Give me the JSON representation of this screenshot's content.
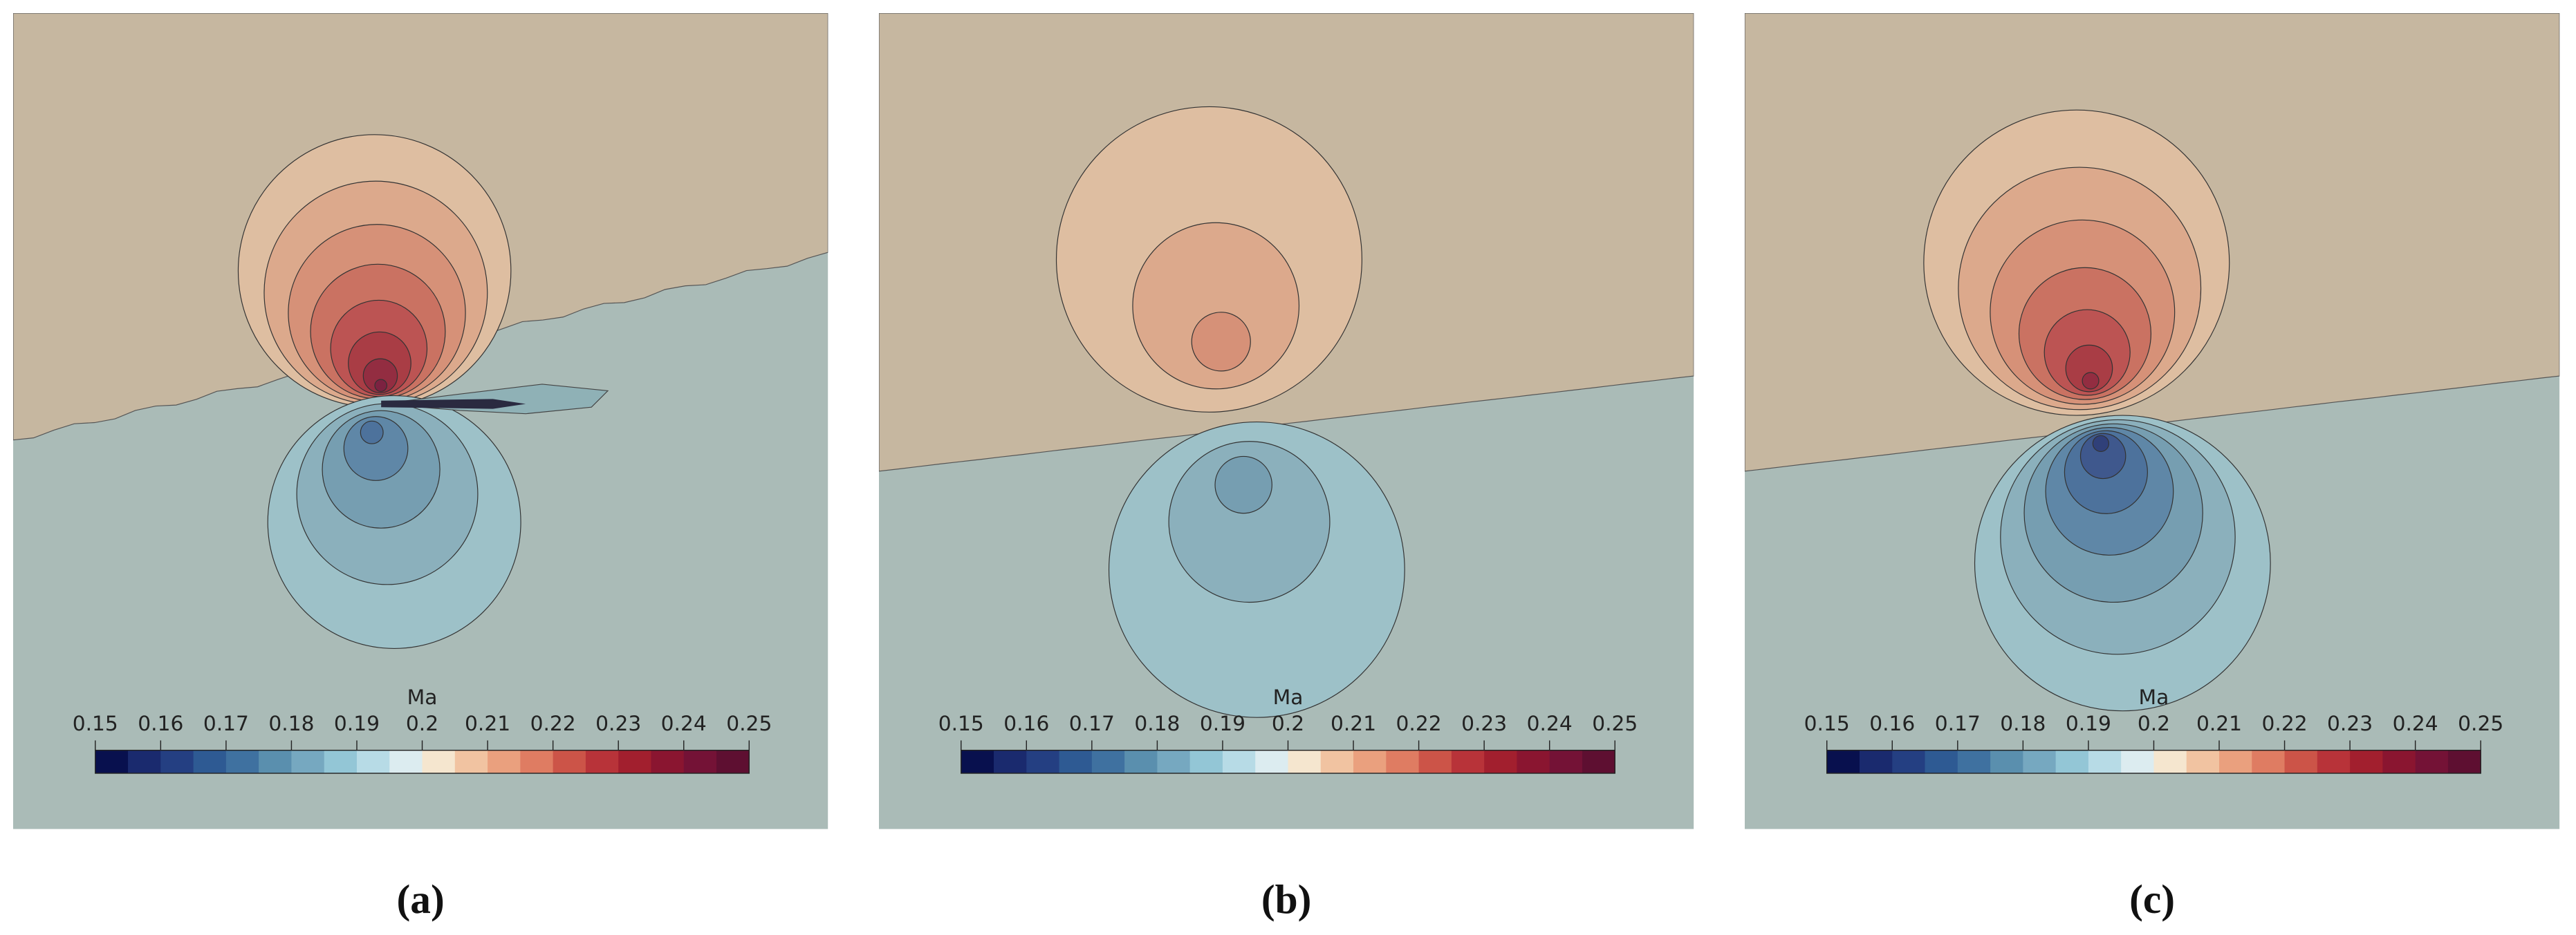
{
  "panels": [
    {
      "label": "(a)"
    },
    {
      "label": "(b)"
    },
    {
      "label": "(c)"
    }
  ],
  "colorbar": {
    "title": "Ma",
    "ticks": [
      0.15,
      0.16,
      0.17,
      0.18,
      0.19,
      0.2,
      0.21,
      0.22,
      0.23,
      0.24,
      0.25
    ],
    "colors": [
      "#08104e",
      "#1a2a6e",
      "#243f82",
      "#2e5a93",
      "#3f71a0",
      "#5a8fae",
      "#76a8c0",
      "#93c6d6",
      "#b7dbe6",
      "#dcecf0",
      "#f5e6cf",
      "#f1c3a1",
      "#eaa07e",
      "#df7c62",
      "#cc5448",
      "#b83339",
      "#a21f2e",
      "#8a1530",
      "#741236",
      "#5e0f31"
    ]
  }
}
